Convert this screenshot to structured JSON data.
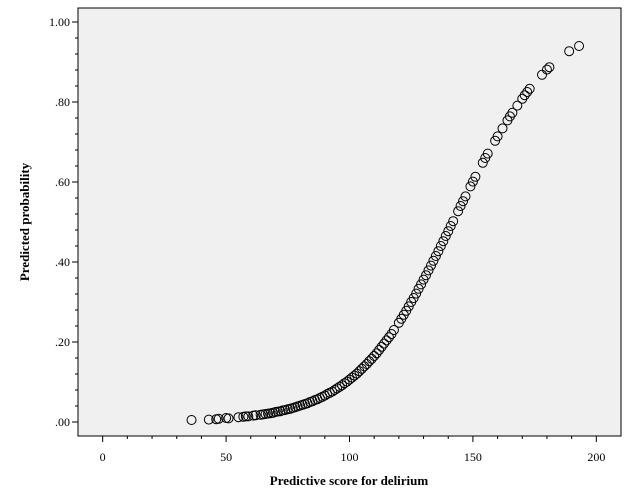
{
  "chart_data": {
    "type": "scatter",
    "title": "",
    "xlabel": "Predictive score for delirium",
    "ylabel": "Predicted probability",
    "xlim": [
      -10,
      210
    ],
    "ylim": [
      -0.035,
      1.035
    ],
    "x_ticks": [
      0,
      50,
      100,
      150,
      200
    ],
    "x_tick_labels": [
      "0",
      "50",
      "100",
      "150",
      "200"
    ],
    "y_ticks": [
      0,
      0.2,
      0.4,
      0.6,
      0.8,
      1.0
    ],
    "y_tick_labels": [
      ".00",
      ".20",
      ".40",
      ".60",
      ".80",
      "1.00"
    ],
    "grid": false,
    "marker": "open-circle",
    "plot_background": "#f0f0f0",
    "series": [
      {
        "x": [
          36,
          43,
          46,
          47,
          50,
          51,
          55,
          57,
          58,
          59,
          61,
          62,
          64,
          65,
          66,
          67,
          68,
          69,
          70,
          71,
          72,
          73,
          74,
          75,
          76,
          77,
          78,
          79,
          80,
          81,
          82,
          83,
          84,
          85,
          86,
          87,
          88,
          89,
          90,
          91,
          92,
          93,
          94,
          95,
          96,
          97,
          98,
          99,
          100,
          101,
          102,
          103,
          104,
          105,
          106,
          107,
          108,
          109,
          110,
          111,
          112,
          113,
          114,
          115,
          116,
          117,
          118,
          120,
          121,
          122,
          123,
          124,
          125,
          126,
          127,
          128,
          129,
          130,
          131,
          132,
          133,
          134,
          135,
          136,
          137,
          138,
          139,
          140,
          141,
          142,
          144,
          145,
          146,
          147,
          149,
          150,
          151,
          154,
          155,
          156,
          159,
          160,
          162,
          164,
          165,
          166,
          168,
          170,
          171,
          172,
          173,
          178,
          180,
          181,
          189,
          193
        ],
        "y": [
          0.005,
          0.006,
          0.007,
          0.008,
          0.01,
          0.009,
          0.012,
          0.013,
          0.014,
          0.014,
          0.016,
          0.017,
          0.018,
          0.019,
          0.02,
          0.021,
          0.022,
          0.023,
          0.025,
          0.026,
          0.027,
          0.029,
          0.03,
          0.032,
          0.033,
          0.035,
          0.037,
          0.039,
          0.041,
          0.043,
          0.045,
          0.047,
          0.05,
          0.052,
          0.055,
          0.057,
          0.06,
          0.063,
          0.066,
          0.07,
          0.073,
          0.076,
          0.08,
          0.084,
          0.088,
          0.092,
          0.097,
          0.101,
          0.106,
          0.111,
          0.116,
          0.121,
          0.127,
          0.133,
          0.139,
          0.145,
          0.152,
          0.158,
          0.165,
          0.172,
          0.18,
          0.188,
          0.196,
          0.204,
          0.212,
          0.22,
          0.23,
          0.248,
          0.258,
          0.268,
          0.278,
          0.289,
          0.3,
          0.31,
          0.321,
          0.333,
          0.344,
          0.356,
          0.367,
          0.379,
          0.391,
          0.403,
          0.415,
          0.427,
          0.44,
          0.452,
          0.465,
          0.477,
          0.49,
          0.502,
          0.527,
          0.54,
          0.552,
          0.564,
          0.589,
          0.601,
          0.613,
          0.648,
          0.66,
          0.671,
          0.703,
          0.714,
          0.734,
          0.754,
          0.764,
          0.773,
          0.791,
          0.808,
          0.817,
          0.825,
          0.833,
          0.868,
          0.881,
          0.887,
          0.927,
          0.94
        ]
      }
    ]
  }
}
